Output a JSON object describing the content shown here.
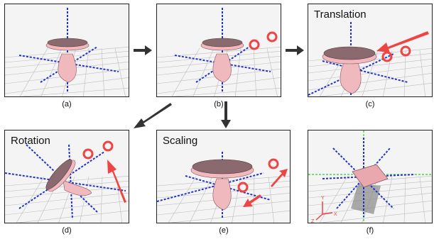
{
  "panels": [
    {
      "id": "a",
      "label": "(a)",
      "title": ""
    },
    {
      "id": "b",
      "label": "(b)",
      "title": ""
    },
    {
      "id": "c",
      "label": "(c)",
      "title": "Translation"
    },
    {
      "id": "d",
      "label": "(d)",
      "title": "Rotation"
    },
    {
      "id": "e",
      "label": "(e)",
      "title": "Scaling"
    },
    {
      "id": "f",
      "label": "(f)",
      "title": ""
    }
  ],
  "axes_gizmo": {
    "x": "X",
    "y": "Y",
    "z": "Z"
  },
  "colors": {
    "grid": "#b8b8b8",
    "axis_blue": "#2233cc",
    "table_top": "#8a6a6f",
    "table_body": "#f0b9bd",
    "cursor_red": "#ee4444",
    "arrow_gray": "#333333",
    "green_axis": "#33cc33"
  }
}
